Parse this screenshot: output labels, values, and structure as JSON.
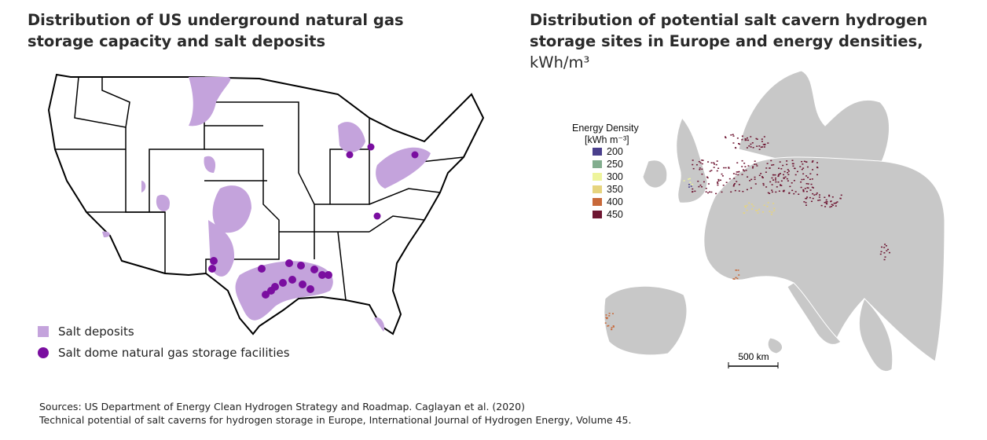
{
  "left_panel": {
    "title": "Distribution of US underground natural gas storage capacity and salt deposits",
    "legend": [
      {
        "label": "Salt deposits",
        "color": "#c4a3dc"
      },
      {
        "label": "Salt dome natural gas storage facilities",
        "color": "#7a0ea0"
      }
    ]
  },
  "right_panel": {
    "title": "Distribution of potential salt cavern hydrogen storage sites in Europe and energy densities,",
    "title_unit": "kWh/m³",
    "legend": {
      "title": "Energy Density",
      "unit": "[kWh m⁻³]",
      "items": [
        {
          "value": 200,
          "color": "#4a3f8c"
        },
        {
          "value": 250,
          "color": "#82ad8e"
        },
        {
          "value": 300,
          "color": "#eef49c"
        },
        {
          "value": 350,
          "color": "#e6d47e"
        },
        {
          "value": 400,
          "color": "#c8693a"
        },
        {
          "value": 450,
          "color": "#6e1632"
        }
      ]
    },
    "scale_bar": "500 km"
  },
  "sources": [
    "Sources: US Department of Energy Clean Hydrogen Strategy and Roadmap. Caglayan et al. (2020)",
    "Technical potential of salt caverns for hydrogen storage in Europe, International Journal of Hydrogen Energy, Volume 45."
  ]
}
